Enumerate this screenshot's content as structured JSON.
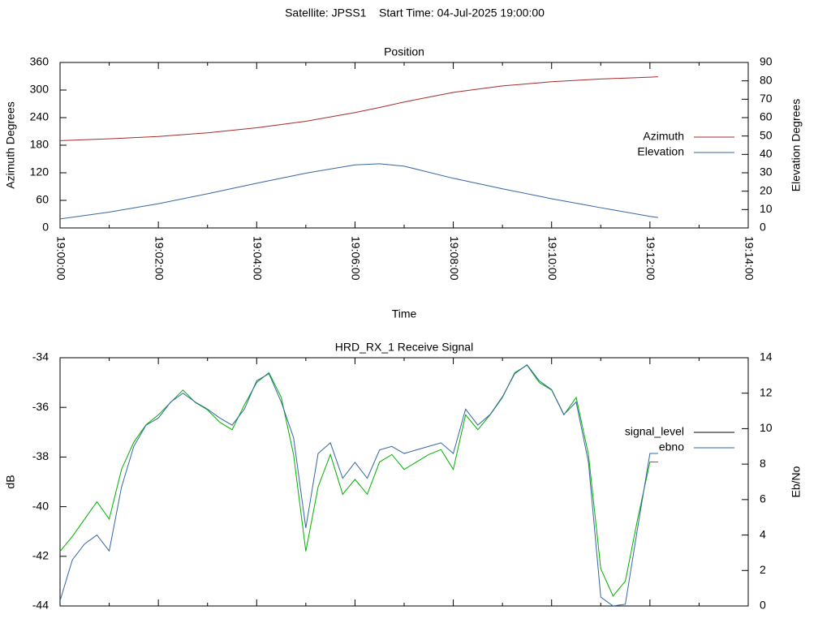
{
  "title": "Satellite: JPSS1    Start Time: 04-Jul-2025 19:00:00",
  "chart_data": [
    {
      "type": "line",
      "title": "Position",
      "xlabel": "Time",
      "ylabel": "Azimuth Degrees",
      "y2label": "Elevation Degrees",
      "x": [
        "19:00:00",
        "19:01:00",
        "19:02:00",
        "19:03:00",
        "19:04:00",
        "19:05:00",
        "19:06:00",
        "19:06:30",
        "19:07:00",
        "19:08:00",
        "19:09:00",
        "19:10:00",
        "19:11:00",
        "19:12:00",
        "19:12:10"
      ],
      "xlim": [
        "19:00:00",
        "19:14:00"
      ],
      "xticks": [
        "19:00:00",
        "19:02:00",
        "19:04:00",
        "19:06:00",
        "19:08:00",
        "19:10:00",
        "19:12:00",
        "19:14:00"
      ],
      "xtick_labels": true,
      "ylim": [
        0,
        360
      ],
      "yticks": [
        0,
        60,
        120,
        180,
        240,
        300,
        360
      ],
      "y2lim": [
        0,
        90
      ],
      "y2ticks": [
        0,
        10,
        20,
        30,
        40,
        50,
        60,
        70,
        80,
        90
      ],
      "legend": "right",
      "series": [
        {
          "name": "Azimuth",
          "color": "#a52a2a",
          "key_color": "#a52a2a",
          "values": [
            190,
            194,
            199,
            207,
            218,
            232,
            251,
            262,
            274,
            295,
            309,
            318,
            324,
            328,
            329
          ]
        },
        {
          "name": "Elevation",
          "color": "#3465a4",
          "key_color": "#3465a4",
          "axis": "y2",
          "values": [
            4.9,
            8.6,
            13.2,
            18.6,
            24.3,
            29.8,
            34.3,
            34.9,
            33.6,
            27.0,
            21.3,
            15.9,
            11.0,
            6.3,
            5.7
          ]
        }
      ]
    },
    {
      "type": "line",
      "title": "HRD_RX_1 Receive Signal",
      "ylabel": "dB",
      "y2label": "Eb/No",
      "x": [
        "19:00:00",
        "19:00:15",
        "19:00:30",
        "19:00:45",
        "19:01:00",
        "19:01:15",
        "19:01:30",
        "19:01:45",
        "19:02:00",
        "19:02:15",
        "19:02:30",
        "19:02:45",
        "19:03:00",
        "19:03:15",
        "19:03:30",
        "19:03:45",
        "19:04:00",
        "19:04:15",
        "19:04:30",
        "19:04:45",
        "19:05:00",
        "19:05:15",
        "19:05:30",
        "19:05:45",
        "19:06:00",
        "19:06:15",
        "19:06:30",
        "19:06:45",
        "19:07:00",
        "19:07:15",
        "19:07:30",
        "19:07:45",
        "19:08:00",
        "19:08:15",
        "19:08:30",
        "19:08:45",
        "19:09:00",
        "19:09:15",
        "19:09:30",
        "19:09:45",
        "19:10:00",
        "19:10:15",
        "19:10:30",
        "19:10:45",
        "19:11:00",
        "19:11:15",
        "19:11:30",
        "19:11:45",
        "19:12:00",
        "19:12:10"
      ],
      "xlim": [
        "19:00:00",
        "19:14:00"
      ],
      "xticks": [
        "19:00:00",
        "19:02:00",
        "19:04:00",
        "19:06:00",
        "19:08:00",
        "19:10:00",
        "19:12:00",
        "19:14:00"
      ],
      "xtick_labels": false,
      "ylim": [
        -44,
        -34
      ],
      "yticks": [
        -44,
        -42,
        -40,
        -38,
        -36,
        -34
      ],
      "y2lim": [
        0,
        14
      ],
      "y2ticks": [
        0,
        2,
        4,
        6,
        8,
        10,
        12,
        14
      ],
      "legend": "right",
      "series": [
        {
          "name": "signal_level",
          "color": "#00b000",
          "key_color": "#000000",
          "values": [
            -41.8,
            -41.2,
            -40.5,
            -39.8,
            -40.5,
            -38.5,
            -37.4,
            -36.7,
            -36.3,
            -35.8,
            -35.3,
            -35.8,
            -36.1,
            -36.6,
            -36.9,
            -35.9,
            -35.0,
            -34.6,
            -35.6,
            -37.9,
            -41.8,
            -39.2,
            -37.9,
            -39.5,
            -38.9,
            -39.5,
            -38.2,
            -37.9,
            -38.5,
            -38.2,
            -37.9,
            -37.7,
            -38.5,
            -36.3,
            -36.9,
            -36.3,
            -35.6,
            -34.6,
            -34.3,
            -35.0,
            -35.3,
            -36.3,
            -35.6,
            -37.9,
            -42.5,
            -43.6,
            -43.0,
            -40.5,
            -38.2,
            -38.2
          ]
        },
        {
          "name": "ebno",
          "color": "#3465a4",
          "key_color": "#3465a4",
          "axis": "y2",
          "values": [
            0.3,
            2.6,
            3.5,
            4.0,
            3.1,
            6.7,
            9.0,
            10.2,
            10.6,
            11.5,
            12.0,
            11.5,
            11.1,
            10.6,
            10.2,
            11.1,
            12.7,
            13.1,
            11.5,
            9.5,
            4.4,
            8.6,
            9.2,
            7.2,
            8.1,
            7.2,
            8.8,
            9.0,
            8.6,
            8.8,
            9.0,
            9.2,
            8.6,
            11.1,
            10.2,
            10.8,
            11.8,
            13.1,
            13.6,
            12.7,
            12.2,
            10.8,
            11.5,
            8.1,
            0.5,
            0,
            0.1,
            4.4,
            8.6,
            8.6
          ]
        }
      ]
    }
  ]
}
